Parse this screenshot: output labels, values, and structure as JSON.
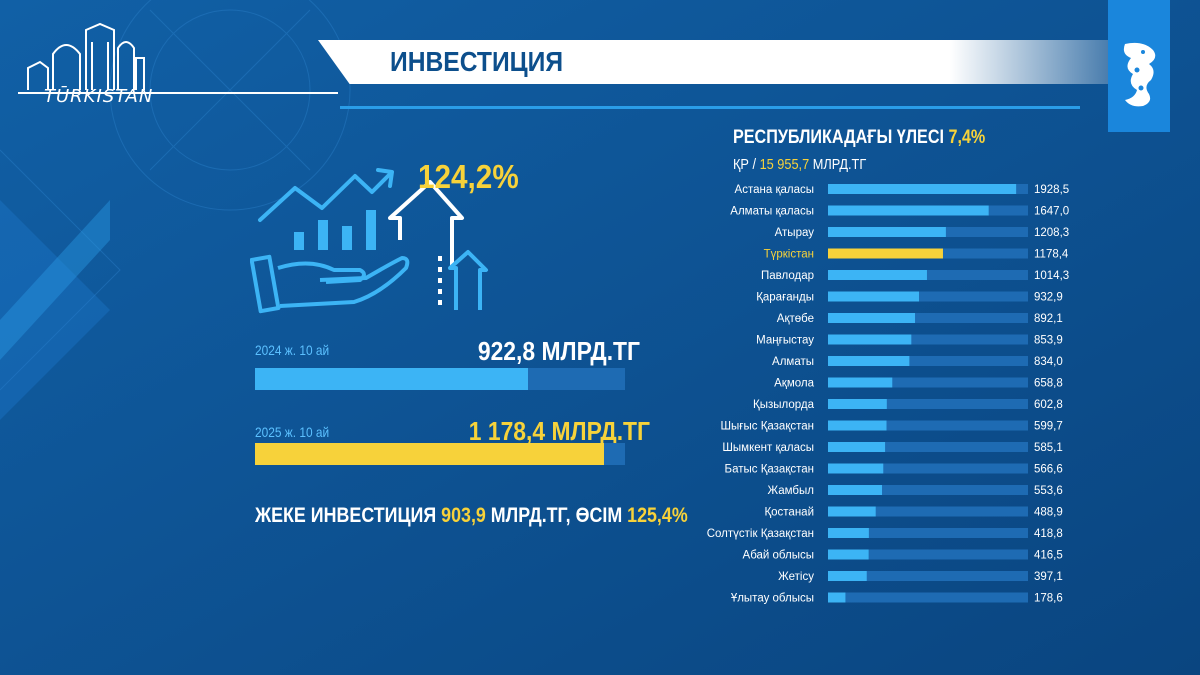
{
  "header": {
    "title": "ИНВЕСТИЦИЯ",
    "logo_text": "TŪRKISTAN"
  },
  "left_panel": {
    "growth_pct": "124,2%",
    "bars": [
      {
        "label": "2024 ж. 10 ай",
        "value_text": "922,8 МЛРД.ТГ",
        "value": 922.8,
        "color": "#3cb4f5"
      },
      {
        "label": "2025 ж. 10 ай",
        "value_text": "1 178,4 МЛРД.ТГ",
        "value": 1178.4,
        "color": "#f7d23a"
      }
    ],
    "bar_max": 1250,
    "private_prefix": "ЖЕКЕ ИНВЕСТИЦИЯ ",
    "private_value": "903,9",
    "private_mid": " МЛРД.ТГ, ӨСІМ ",
    "private_growth": "125,4%"
  },
  "right_panel": {
    "share_prefix": "РЕСПУБЛИКАДАҒЫ ҮЛЕСІ ",
    "share_value": "7,4%",
    "total_prefix": "ҚР / ",
    "total_value": "15 955,7",
    "total_unit": " МЛРД.ТГ"
  },
  "chart_data": {
    "type": "bar",
    "orientation": "horizontal",
    "categories": [
      "Астана қаласы",
      "Алматы қаласы",
      "Атырау",
      "Түркістан",
      "Павлодар",
      "Қарағанды",
      "Ақтөбе",
      "Маңғыстау",
      "Алматы",
      "Ақмола",
      "Қызылорда",
      "Шығыс Қазақстан",
      "Шымкент қаласы",
      "Батыс Қазақстан",
      "Жамбыл",
      "Қостанай",
      "Солтүстік Қазақстан",
      "Абай облысы",
      "Жетісу",
      "Ұлытау облысы"
    ],
    "values": [
      1928.5,
      1647.0,
      1208.3,
      1178.4,
      1014.3,
      932.9,
      892.1,
      853.9,
      834.0,
      658.8,
      602.8,
      599.7,
      585.1,
      566.6,
      553.6,
      488.9,
      418.8,
      416.5,
      397.1,
      178.6
    ],
    "value_labels": [
      "1928,5",
      "1647,0",
      "1208,3",
      "1178,4",
      "1014,3",
      "932,9",
      "892,1",
      "853,9",
      "834,0",
      "658,8",
      "602,8",
      "599,7",
      "585,1",
      "566,6",
      "553,6",
      "488,9",
      "418,8",
      "416,5",
      "397,1",
      "178,6"
    ],
    "highlight": "Түркістан",
    "colors": {
      "bar": "#3cb4f5",
      "highlight": "#f7d23a",
      "track": "#1e6bb3"
    }
  }
}
